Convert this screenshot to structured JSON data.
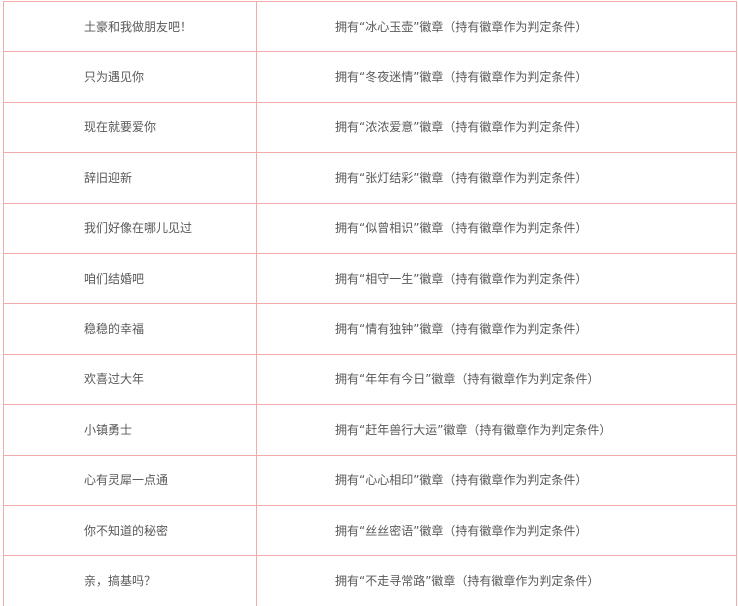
{
  "colors": {
    "table_border": "#f2abab",
    "text": "#595959",
    "background": "#ffffff"
  },
  "table": {
    "columns": [
      "room-title",
      "badge-requirement"
    ],
    "rows": [
      {
        "name": "土豪和我做朋友吧！",
        "requirement": "拥有“冰心玉壶”徽章（持有徽章作为判定条件）"
      },
      {
        "name": "只为遇见你",
        "requirement": "拥有“冬夜迷情”徽章（持有徽章作为判定条件）"
      },
      {
        "name": "现在就要爱你",
        "requirement": "拥有“浓浓爱意”徽章（持有徽章作为判定条件）"
      },
      {
        "name": "辞旧迎新",
        "requirement": "拥有“张灯结彩”徽章（持有徽章作为判定条件）"
      },
      {
        "name": "我们好像在哪儿见过",
        "requirement": "拥有“似曾相识”徽章（持有徽章作为判定条件）"
      },
      {
        "name": "咱们结婚吧",
        "requirement": "拥有“相守一生”徽章（持有徽章作为判定条件）"
      },
      {
        "name": "稳稳的幸福",
        "requirement": "拥有“情有独钟”徽章（持有徽章作为判定条件）"
      },
      {
        "name": "欢喜过大年",
        "requirement": "拥有“年年有今日”徽章（持有徽章作为判定条件）"
      },
      {
        "name": "小镇勇士",
        "requirement": "拥有“赶年兽行大运”徽章（持有徽章作为判定条件）"
      },
      {
        "name": "心有灵犀一点通",
        "requirement": "拥有“心心相印”徽章（持有徽章作为判定条件）"
      },
      {
        "name": "你不知道的秘密",
        "requirement": "拥有“丝丝密语”徽章（持有徽章作为判定条件）"
      },
      {
        "name": "亲，搞基吗？",
        "requirement": "拥有“不走寻常路”徽章（持有徽章作为判定条件）"
      }
    ]
  }
}
